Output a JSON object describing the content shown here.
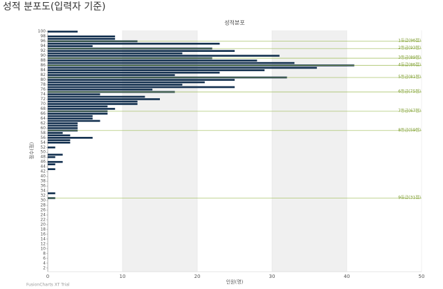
{
  "page_title": "성적 분포도(입력자 기준)",
  "chart_data": {
    "type": "bar",
    "orientation": "horizontal",
    "caption": "성적분포",
    "x_label": "인원(명)",
    "y_label": "점수(점)",
    "footer": "FusionCharts XT Trial",
    "color": "#13304f",
    "grid": true,
    "alternate_bands": true,
    "xlim": [
      0,
      50
    ],
    "xticks": [
      0,
      10,
      20,
      30,
      40,
      50
    ],
    "categories": [
      "100",
      null,
      "98",
      null,
      "96",
      null,
      "94",
      null,
      "92",
      null,
      "90",
      null,
      "88",
      null,
      "86",
      null,
      "84",
      null,
      "82",
      null,
      "80",
      null,
      "78",
      null,
      "76",
      null,
      "74",
      null,
      "72",
      null,
      "70",
      null,
      "68",
      null,
      "66",
      null,
      "64",
      null,
      "62",
      null,
      "60",
      null,
      "58",
      null,
      "56",
      null,
      "54",
      null,
      "52",
      null,
      "50",
      null,
      "48",
      null,
      "46",
      null,
      "44",
      null,
      "42",
      null,
      "40",
      null,
      "38",
      null,
      "36",
      null,
      "34",
      null,
      "32",
      null,
      "30",
      null,
      "28",
      null,
      "26",
      null,
      "24",
      null,
      "22",
      null,
      "20",
      null,
      "18",
      null,
      "16",
      null,
      "14",
      null,
      "12",
      null,
      "10",
      null,
      "8",
      null,
      "6",
      null,
      "4",
      null,
      "2",
      null
    ],
    "values": [
      4,
      0,
      9,
      9,
      12,
      23,
      6,
      22,
      25,
      18,
      31,
      22,
      28,
      33,
      41,
      36,
      29,
      23,
      17,
      32,
      25,
      21,
      18,
      25,
      14,
      17,
      7,
      13,
      15,
      12,
      12,
      8,
      9,
      8,
      8,
      6,
      6,
      7,
      4,
      4,
      4,
      4,
      2,
      3,
      6,
      3,
      3,
      0,
      1,
      0,
      0,
      2,
      1,
      0,
      2,
      1,
      0,
      1,
      0,
      0,
      0,
      0,
      0,
      0,
      0,
      0,
      0,
      1,
      0,
      1,
      0,
      0,
      0,
      0,
      0,
      0,
      0,
      0,
      0,
      0,
      0,
      0,
      0,
      0,
      0,
      0,
      0,
      0,
      0,
      0,
      0,
      0,
      0,
      0,
      0,
      0,
      0,
      0,
      0,
      0
    ],
    "trendlines": [
      {
        "value": 96,
        "label": "1등급(96점)"
      },
      {
        "value": 93,
        "label": "2등급(93점)"
      },
      {
        "value": 89,
        "label": "3등급(89점)"
      },
      {
        "value": 86,
        "label": "4등급(86점)"
      },
      {
        "value": 81,
        "label": "5등급(81점)"
      },
      {
        "value": 75,
        "label": "6등급(75점)"
      },
      {
        "value": 67,
        "label": "7등급(67점)"
      },
      {
        "value": 59,
        "label": "8등급(59점)"
      },
      {
        "value": 31,
        "label": "9등급(31점)"
      }
    ],
    "trend_color": "#9dbb55"
  }
}
